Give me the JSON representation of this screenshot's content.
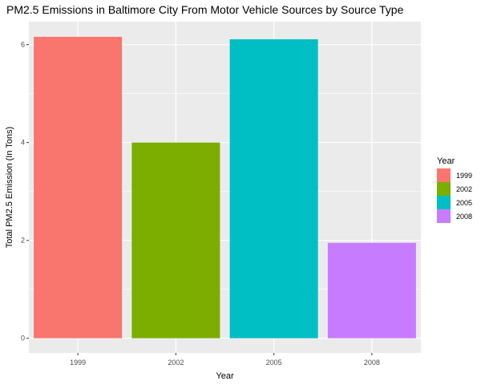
{
  "chart_data": {
    "type": "bar",
    "title": "PM2.5 Emissions in Baltimore City From Motor Vehicle Sources by Source Type",
    "xlabel": "Year",
    "ylabel": "Total PM2.5 Emission (In Tons)",
    "categories": [
      "1999",
      "2002",
      "2005",
      "2008"
    ],
    "values": [
      6.16,
      4.0,
      6.11,
      1.95
    ],
    "colors": [
      "#F8766D",
      "#7CAE00",
      "#00BFC4",
      "#C77CFF"
    ],
    "ylim": [
      -0.3,
      6.47
    ],
    "yticks": [
      0,
      2,
      4,
      6
    ],
    "y_tick_labels": [
      "0",
      "2",
      "4",
      "6"
    ],
    "grid": true,
    "panel_background": "#EBEBEB",
    "grid_color": "#FFFFFF",
    "legend": {
      "title": "Year",
      "position": "right",
      "entries": [
        "1999",
        "2002",
        "2005",
        "2008"
      ]
    }
  }
}
